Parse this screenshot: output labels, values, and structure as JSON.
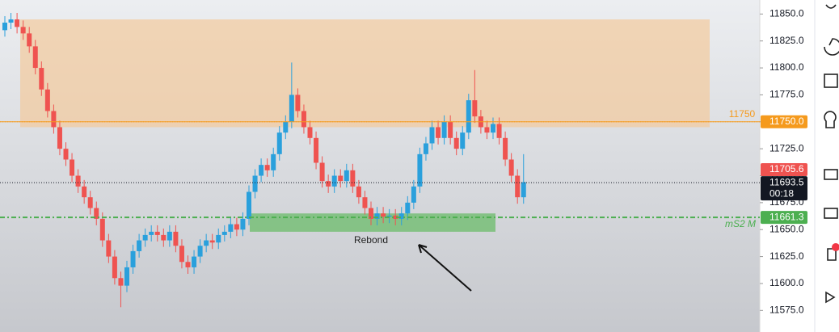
{
  "chart_data": {
    "type": "candlestick",
    "up_color": "#2aa0dc",
    "down_color": "#ef5350",
    "ylim": [
      11555,
      11863
    ],
    "yticks": [
      {
        "value": 11575,
        "label": "11575.0"
      },
      {
        "value": 11600,
        "label": "11600.0"
      },
      {
        "value": 11625,
        "label": "11625.0"
      },
      {
        "value": 11650,
        "label": "11650.0"
      },
      {
        "value": 11675,
        "label": "11675.0"
      },
      {
        "value": 11700,
        "label": "11700.0"
      },
      {
        "value": 11725,
        "label": "11725.0"
      },
      {
        "value": 11750,
        "label": "11750.0"
      },
      {
        "value": 11775,
        "label": "11775.0"
      },
      {
        "value": 11800,
        "label": "11800.0"
      },
      {
        "value": 11825,
        "label": "11825.0"
      },
      {
        "value": 11850,
        "label": "11850.0"
      }
    ],
    "open": [
      11835,
      11842,
      11845,
      11838,
      11832,
      11820,
      11800,
      11780,
      11760,
      11745,
      11725,
      11715,
      11700,
      11690,
      11680,
      11670,
      11660,
      11640,
      11625,
      11605,
      11598,
      11615,
      11630,
      11640,
      11645,
      11648,
      11645,
      11640,
      11648,
      11635,
      11620,
      11615,
      11625,
      11635,
      11640,
      11638,
      11645,
      11648,
      11655,
      11650,
      11660,
      11685,
      11700,
      11710,
      11705,
      11720,
      11740,
      11750,
      11775,
      11760,
      11745,
      11735,
      11712,
      11695,
      11690,
      11700,
      11695,
      11705,
      11690,
      11680,
      11670,
      11660,
      11665,
      11662,
      11663,
      11660,
      11665,
      11675,
      11690,
      11720,
      11730,
      11745,
      11735,
      11750,
      11735,
      11725,
      11740,
      11770,
      11755,
      11745,
      11740,
      11748,
      11735,
      11715,
      11700,
      11680
    ],
    "high": [
      11848,
      11851,
      11851,
      11844,
      11838,
      11826,
      11806,
      11786,
      11766,
      11751,
      11731,
      11721,
      11706,
      11696,
      11686,
      11676,
      11666,
      11646,
      11631,
      11611,
      11621,
      11636,
      11646,
      11651,
      11654,
      11654,
      11651,
      11654,
      11654,
      11641,
      11626,
      11631,
      11641,
      11646,
      11646,
      11651,
      11654,
      11661,
      11661,
      11666,
      11691,
      11706,
      11716,
      11716,
      11726,
      11746,
      11756,
      11805,
      11781,
      11766,
      11751,
      11741,
      11718,
      11701,
      11706,
      11706,
      11711,
      11711,
      11696,
      11686,
      11676,
      11671,
      11671,
      11669,
      11669,
      11671,
      11681,
      11696,
      11726,
      11736,
      11751,
      11751,
      11756,
      11756,
      11741,
      11746,
      11776,
      11798,
      11761,
      11751,
      11754,
      11754,
      11741,
      11721,
      11706,
      11720
    ],
    "low": [
      11829,
      11836,
      11832,
      11826,
      11814,
      11794,
      11774,
      11754,
      11739,
      11719,
      11709,
      11694,
      11684,
      11674,
      11664,
      11654,
      11634,
      11619,
      11599,
      11578,
      11592,
      11609,
      11624,
      11634,
      11639,
      11639,
      11634,
      11634,
      11629,
      11614,
      11609,
      11609,
      11619,
      11629,
      11632,
      11632,
      11639,
      11642,
      11644,
      11644,
      11654,
      11679,
      11694,
      11699,
      11699,
      11714,
      11734,
      11744,
      11754,
      11739,
      11729,
      11706,
      11689,
      11684,
      11684,
      11689,
      11689,
      11684,
      11674,
      11664,
      11654,
      11654,
      11656,
      11656,
      11654,
      11654,
      11659,
      11669,
      11684,
      11714,
      11724,
      11729,
      11729,
      11729,
      11719,
      11719,
      11734,
      11749,
      11739,
      11734,
      11734,
      11729,
      11709,
      11694,
      11674,
      11674
    ],
    "close": [
      11842,
      11845,
      11838,
      11832,
      11820,
      11800,
      11780,
      11760,
      11745,
      11725,
      11715,
      11700,
      11690,
      11680,
      11670,
      11660,
      11640,
      11625,
      11605,
      11598,
      11615,
      11630,
      11640,
      11645,
      11648,
      11645,
      11640,
      11648,
      11635,
      11620,
      11615,
      11625,
      11635,
      11640,
      11638,
      11645,
      11648,
      11655,
      11650,
      11660,
      11685,
      11700,
      11710,
      11705,
      11720,
      11740,
      11750,
      11775,
      11760,
      11745,
      11735,
      11712,
      11695,
      11690,
      11700,
      11695,
      11705,
      11690,
      11680,
      11670,
      11660,
      11665,
      11662,
      11663,
      11660,
      11665,
      11675,
      11690,
      11720,
      11730,
      11745,
      11735,
      11750,
      11735,
      11725,
      11740,
      11770,
      11755,
      11745,
      11740,
      11748,
      11735,
      11715,
      11700,
      11680,
      11694
    ],
    "supply_zone": {
      "top": 11845,
      "bottom": 11745,
      "color": "#f5c896"
    },
    "demand_zone": {
      "top": 11665,
      "bottom": 11648,
      "color": "#7cc07c",
      "label": "Rebond"
    },
    "level_label": {
      "value": 11750,
      "label": "11750"
    },
    "pivot_label": "mS2 M",
    "price_tags": [
      {
        "value": 11750,
        "label": "11750.0",
        "color": "#f59a1d"
      },
      {
        "value": 11705.6,
        "label": "11705.6",
        "color": "#ef5350"
      },
      {
        "value": 11693.5,
        "label": "11693.5",
        "color": "#131722"
      },
      {
        "value": 11661.3,
        "label": "11661.3",
        "color": "#4caf50"
      }
    ],
    "countdown": "00:18"
  }
}
